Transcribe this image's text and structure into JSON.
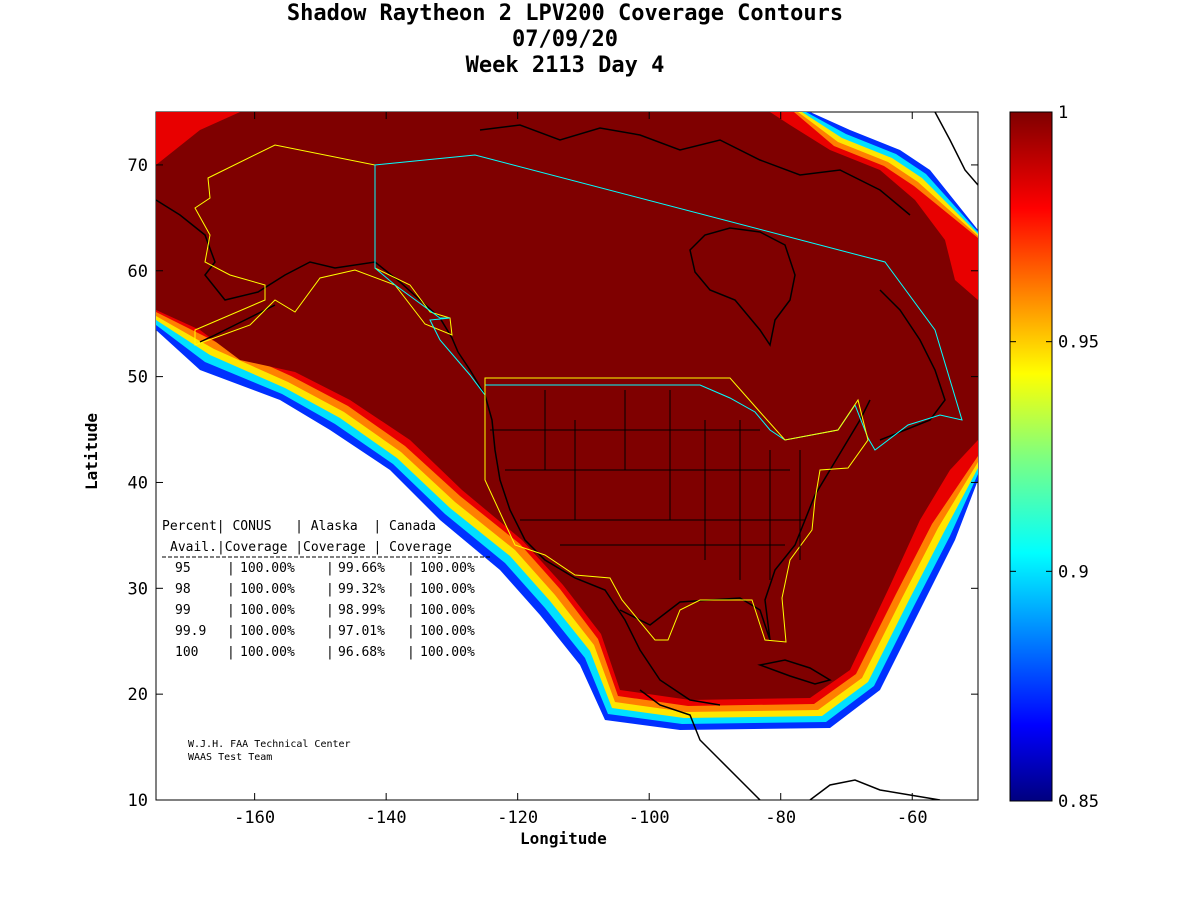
{
  "title": {
    "line1": "Shadow Raytheon 2 LPV200 Coverage Contours",
    "line2": "07/09/20",
    "line3": "Week 2113 Day 4"
  },
  "map": {
    "xlabel": "Longitude",
    "ylabel": "Latitude",
    "xlim": [
      -175,
      -50
    ],
    "ylim": [
      10,
      75
    ],
    "xticks": [
      -160,
      -140,
      -120,
      -100,
      -80,
      -60
    ],
    "yticks": [
      10,
      20,
      30,
      40,
      50,
      60,
      70
    ],
    "fill_color": "#7f0000"
  },
  "colorbar": {
    "ticks": [
      "1",
      "0.95",
      "0.9",
      "0.85"
    ],
    "tick_values": [
      1,
      0.95,
      0.9,
      0.85
    ],
    "range": [
      0.85,
      1
    ],
    "colormap": "jet"
  },
  "coverage_table": {
    "header1": [
      "Percent|",
      "CONUS",
      "| Alaska",
      "| Canada"
    ],
    "header2": [
      "Avail.|Coverage",
      "|Coverage",
      "| Coverage"
    ],
    "rows": [
      {
        "percent": "95",
        "conus": "100.00%",
        "alaska": "99.66%",
        "canada": "100.00%"
      },
      {
        "percent": "98",
        "conus": "100.00%",
        "alaska": "99.32%",
        "canada": "100.00%"
      },
      {
        "percent": "99",
        "conus": "100.00%",
        "alaska": "98.99%",
        "canada": "100.00%"
      },
      {
        "percent": "99.9",
        "conus": "100.00%",
        "alaska": "97.01%",
        "canada": "100.00%"
      },
      {
        "percent": "100",
        "conus": "100.00%",
        "alaska": "96.68%",
        "canada": "100.00%"
      }
    ]
  },
  "credit": {
    "line1": "W.J.H. FAA Technical Center",
    "line2": "WAAS Test Team"
  }
}
